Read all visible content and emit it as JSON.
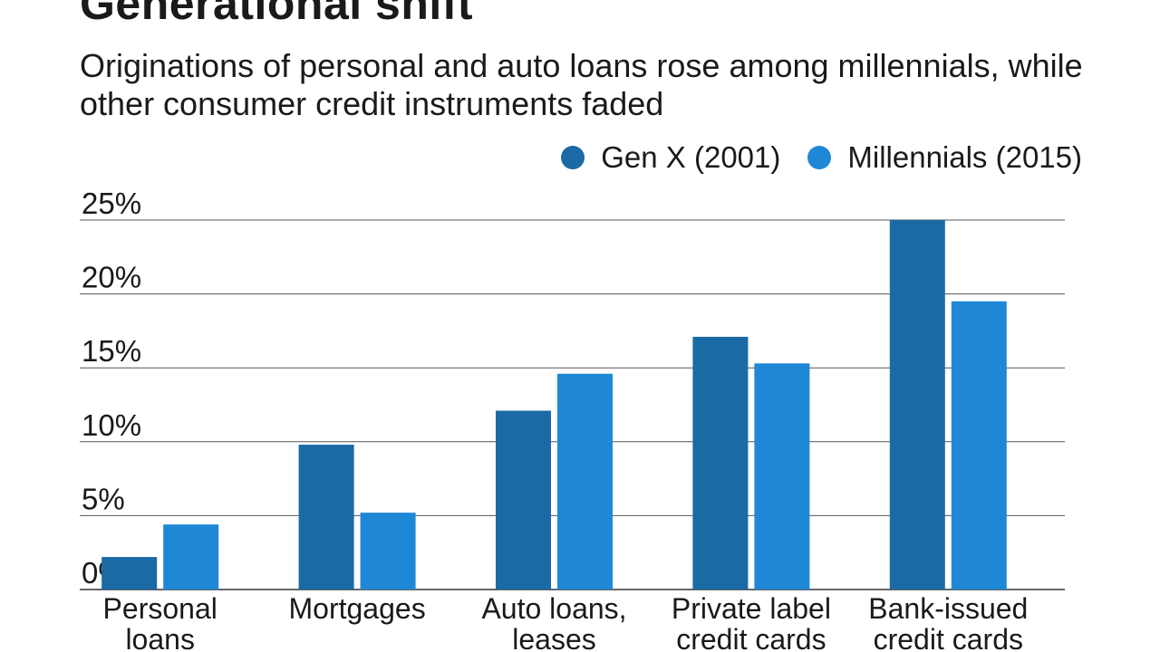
{
  "chart_data": {
    "type": "bar",
    "title": "Generational shift",
    "subtitle": "Originations of personal and auto loans rose among millennials, while other consumer credit instruments faded",
    "categories": [
      [
        "Personal",
        "loans"
      ],
      [
        "Mortgages"
      ],
      [
        "Auto loans,",
        "leases"
      ],
      [
        "Private label",
        "credit cards"
      ],
      [
        "Bank-issued",
        "credit cards"
      ]
    ],
    "series": [
      {
        "name": "Gen X (2001)",
        "color": "#1b6aa5",
        "values": [
          2.2,
          9.8,
          12.1,
          17.1,
          25.0
        ]
      },
      {
        "name": "Millennials (2015)",
        "color": "#1e88d6",
        "values": [
          4.4,
          5.2,
          14.6,
          15.3,
          19.5
        ]
      }
    ],
    "ylim": [
      0,
      25
    ],
    "yticks": [
      0,
      5,
      10,
      15,
      20,
      25
    ],
    "ytick_labels": [
      "0%",
      "5%",
      "10%",
      "15%",
      "20%",
      "25%"
    ],
    "xlabel": "",
    "ylabel": "",
    "grid": true,
    "legend_position": "top-right"
  }
}
